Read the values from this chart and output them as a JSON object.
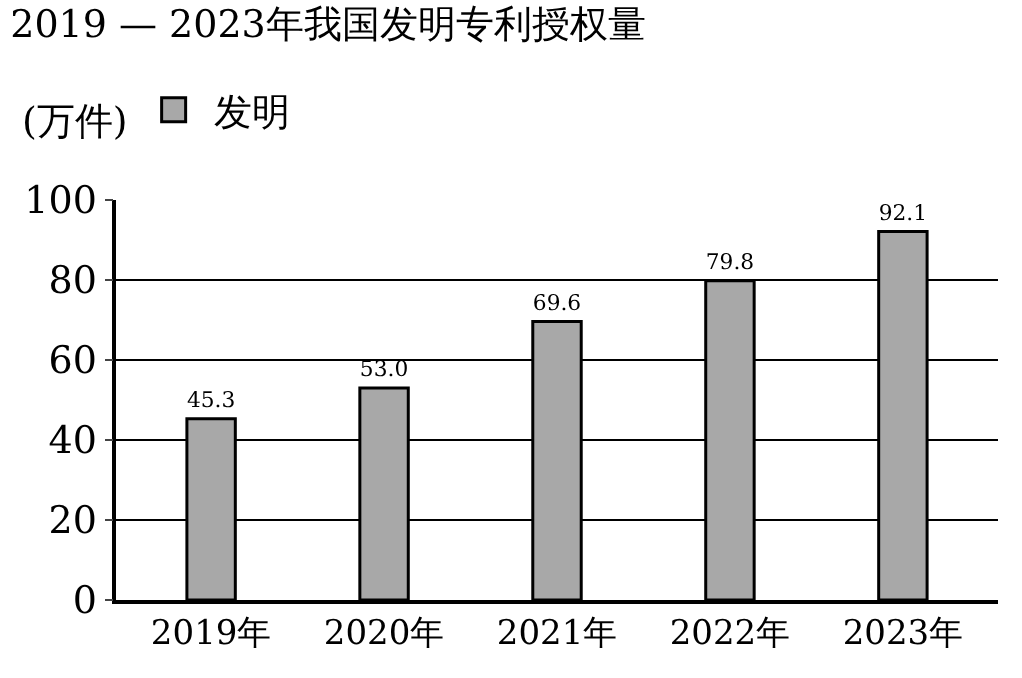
{
  "chart_data": {
    "type": "bar",
    "title": "2019 — 2023年我国发明专利授权量",
    "ylabel": "(万件)",
    "categories": [
      "2019年",
      "2020年",
      "2021年",
      "2022年",
      "2023年"
    ],
    "series": [
      {
        "name": "发明",
        "color": "#a8a8a8",
        "values": [
          45.3,
          53.0,
          69.6,
          79.8,
          92.1
        ],
        "value_labels": [
          "45.3",
          "53.0",
          "69.6",
          "79.8",
          "92.1"
        ]
      }
    ],
    "ylim": [
      0,
      100
    ],
    "yticks": [
      0,
      20,
      40,
      60,
      80,
      100
    ],
    "grid": "y",
    "legend": "top left"
  }
}
